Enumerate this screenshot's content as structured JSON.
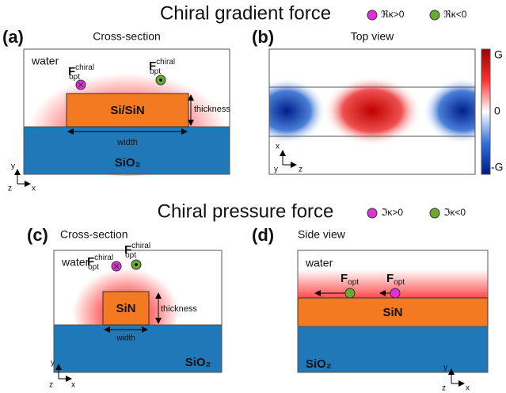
{
  "top": {
    "title": "Chiral gradient force",
    "legend": [
      "ℜκ>0",
      "ℜκ<0"
    ]
  },
  "panel_a": {
    "label": "(a)",
    "caption": "Cross-section",
    "medium": "water",
    "force_1": {
      "symbol": "F",
      "sup": "chiral",
      "sub": "opt"
    },
    "force_2": {
      "symbol": "F",
      "sup": "chiral",
      "sub": "opt"
    },
    "core": "Si/SiN",
    "thickness": "thickness",
    "width": "width",
    "substrate": "SiO₂",
    "axes": [
      "y",
      "z",
      "x"
    ]
  },
  "panel_b": {
    "label": "(b)",
    "caption": "Top view",
    "colorbar": [
      "G",
      "0",
      "-G"
    ],
    "axes": [
      "x",
      "y",
      "z"
    ]
  },
  "bottom": {
    "title": "Chiral pressure force",
    "legend": [
      "ℑκ>0",
      "ℑκ<0"
    ]
  },
  "panel_c": {
    "label": "(c)",
    "caption": "Cross-section",
    "medium": "water",
    "force_1": {
      "symbol": "F",
      "sup": "chiral",
      "sub": "opt"
    },
    "force_2": {
      "symbol": "F",
      "sup": "chiral",
      "sub": "opt"
    },
    "core": "SiN",
    "thickness": "thickness",
    "width": "width",
    "substrate": "SiO₂",
    "axes": [
      "y",
      "z",
      "x"
    ]
  },
  "panel_d": {
    "label": "(d)",
    "caption": "Side view",
    "medium": "water",
    "force_1": {
      "symbol": "F",
      "sub": "opt"
    },
    "force_2": {
      "symbol": "F",
      "sub": "opt"
    },
    "core": "SiN",
    "substrate": "SiO₂",
    "axes": [
      "y",
      "z",
      "x"
    ]
  }
}
